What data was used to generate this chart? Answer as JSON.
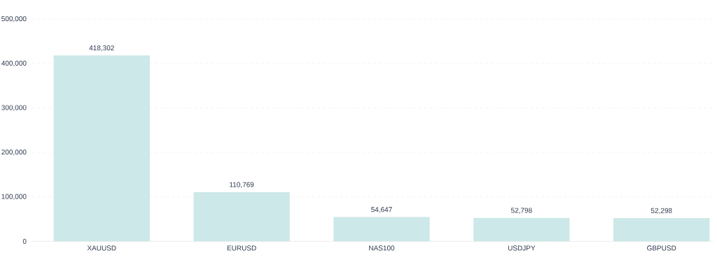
{
  "chart_data": {
    "type": "bar",
    "categories": [
      "XAUUSD",
      "EURUSD",
      "NAS100",
      "USDJPY",
      "GBPUSD"
    ],
    "values": [
      418302,
      110769,
      54647,
      52798,
      52298
    ],
    "value_labels": [
      "418,302",
      "110,769",
      "54,647",
      "52,798",
      "52,298"
    ],
    "color": "#cde8e8",
    "ylim": [
      0,
      500000
    ],
    "yticks": [
      {
        "value": 0,
        "label": "0"
      },
      {
        "value": 100000,
        "label": "100,000"
      },
      {
        "value": 200000,
        "label": "200,000"
      },
      {
        "value": 300000,
        "label": "300,000"
      },
      {
        "value": 400000,
        "label": "400,000"
      },
      {
        "value": 500000,
        "label": "500,000"
      }
    ],
    "grid": "y"
  }
}
